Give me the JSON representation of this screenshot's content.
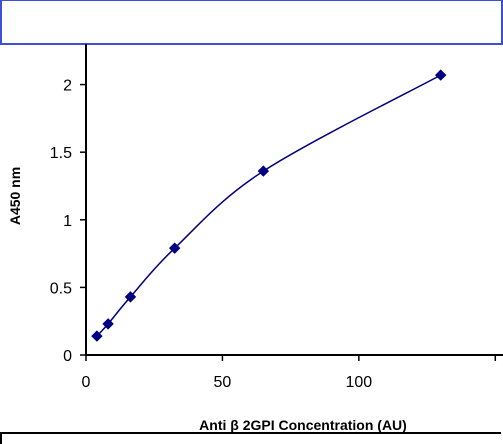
{
  "chart_data": {
    "type": "scatter",
    "title": "",
    "xlabel": "Anti β 2GPI Concentration (AU)",
    "ylabel": "A450 nm",
    "xlim": [
      0,
      140
    ],
    "ylim": [
      0,
      2.3
    ],
    "x_ticks": [
      0,
      50,
      100
    ],
    "x_tick_labels": [
      "0",
      "50",
      "100"
    ],
    "y_ticks": [
      0,
      0.5,
      1,
      1.5,
      2
    ],
    "y_tick_labels": [
      "0",
      "0.5",
      "1",
      "1.5",
      "2"
    ],
    "grid": false,
    "line": "smooth",
    "marker": "diamond",
    "colors": {
      "series": "#000080",
      "frame": "#3b4fd8"
    },
    "series": [
      {
        "x": [
          4,
          8.1,
          16.3,
          32.5,
          65,
          130
        ],
        "y": [
          0.14,
          0.23,
          0.43,
          0.79,
          1.36,
          2.07
        ]
      }
    ]
  }
}
